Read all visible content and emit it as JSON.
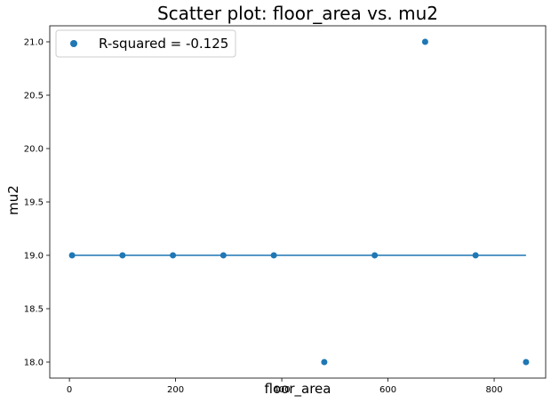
{
  "chart_data": {
    "type": "scatter",
    "title": "Scatter plot: floor_area vs. mu2",
    "xlabel": "floor_area",
    "ylabel": "mu2",
    "xlim": [
      -37,
      897
    ],
    "ylim": [
      17.85,
      21.15
    ],
    "xticks": [
      0,
      200,
      400,
      600,
      800
    ],
    "yticks": [
      18.0,
      18.5,
      19.0,
      19.5,
      20.0,
      20.5,
      21.0
    ],
    "xtick_labels": [
      "0",
      "200",
      "400",
      "600",
      "800"
    ],
    "ytick_labels": [
      "18.0",
      "18.5",
      "19.0",
      "19.5",
      "20.0",
      "20.5",
      "21.0"
    ],
    "grid": false,
    "legend_position": "upper-left",
    "series": [
      {
        "name": "R-squared = -0.125",
        "kind": "scatter",
        "color": "#1f77b4",
        "x": [
          5,
          100,
          195,
          290,
          385,
          480,
          575,
          670,
          765,
          860
        ],
        "y": [
          19.0,
          19.0,
          19.0,
          19.0,
          19.0,
          18.0,
          19.0,
          21.0,
          19.0,
          18.0
        ]
      },
      {
        "kind": "line",
        "color": "#1f77b4",
        "x": [
          5,
          860
        ],
        "y": [
          19.0,
          19.0
        ]
      }
    ]
  }
}
